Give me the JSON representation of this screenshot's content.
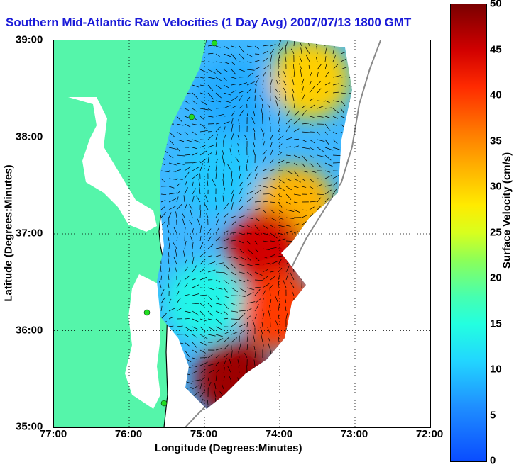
{
  "title": "Southern Mid-Atlantic Raw Velocities (1 Day Avg) 2007/07/13 1800 GMT",
  "xlabel": "Longitude (Degrees:Minutes)",
  "ylabel": "Latitude (Degrees:Minutes)",
  "x_ticks": [
    {
      "value": -77,
      "label": "77:00"
    },
    {
      "value": -76,
      "label": "76:00"
    },
    {
      "value": -75,
      "label": "75:00"
    },
    {
      "value": -74,
      "label": "74:00"
    },
    {
      "value": -73,
      "label": "73:00"
    },
    {
      "value": -72,
      "label": "72:00"
    }
  ],
  "y_ticks": [
    {
      "value": 39,
      "label": "39:00"
    },
    {
      "value": 38,
      "label": "38:00"
    },
    {
      "value": 37,
      "label": "37:00"
    },
    {
      "value": 36,
      "label": "36:00"
    },
    {
      "value": 35,
      "label": "35:00"
    }
  ],
  "map": {
    "lon_range": [
      -77,
      -72
    ],
    "lat_range": [
      35,
      39
    ],
    "land_color": "#55f5aa",
    "grid": "dotted",
    "coastline_color": "#000000",
    "shelf_contour_color": "#888888",
    "station_marker_color": "#22dd22"
  },
  "colorbar": {
    "label": "Surface Velocity (cm/s)",
    "min": 0,
    "max": 50,
    "ticks": [
      {
        "value": 0,
        "label": "0"
      },
      {
        "value": 5,
        "label": "5"
      },
      {
        "value": 10,
        "label": "10"
      },
      {
        "value": 15,
        "label": "15"
      },
      {
        "value": 20,
        "label": "20"
      },
      {
        "value": 25,
        "label": "25"
      },
      {
        "value": 30,
        "label": "30"
      },
      {
        "value": 35,
        "label": "35"
      },
      {
        "value": 40,
        "label": "40"
      },
      {
        "value": 45,
        "label": "45"
      },
      {
        "value": 50,
        "label": "50"
      }
    ]
  },
  "chart_data": {
    "type": "heatmap",
    "title": "Southern Mid-Atlantic Raw Velocities (1 Day Avg) 2007/07/13 1800 GMT",
    "xlabel": "Longitude (Degrees:Minutes)",
    "ylabel": "Latitude (Degrees:Minutes)",
    "xlim": [
      -77,
      -72
    ],
    "ylim": [
      35,
      39
    ],
    "color_scale": {
      "label": "Surface Velocity (cm/s)",
      "min": 0,
      "max": 50
    },
    "regions": [
      {
        "lon": -74.6,
        "lat": 38.4,
        "speed_cm_s": 8
      },
      {
        "lon": -73.6,
        "lat": 38.6,
        "speed_cm_s": 30
      },
      {
        "lon": -74.8,
        "lat": 37.6,
        "speed_cm_s": 10
      },
      {
        "lon": -73.8,
        "lat": 37.3,
        "speed_cm_s": 32
      },
      {
        "lon": -74.2,
        "lat": 36.85,
        "speed_cm_s": 45
      },
      {
        "lon": -74.0,
        "lat": 36.2,
        "speed_cm_s": 40
      },
      {
        "lon": -74.6,
        "lat": 35.5,
        "speed_cm_s": 48
      },
      {
        "lon": -75.0,
        "lat": 36.3,
        "speed_cm_s": 14
      }
    ]
  }
}
